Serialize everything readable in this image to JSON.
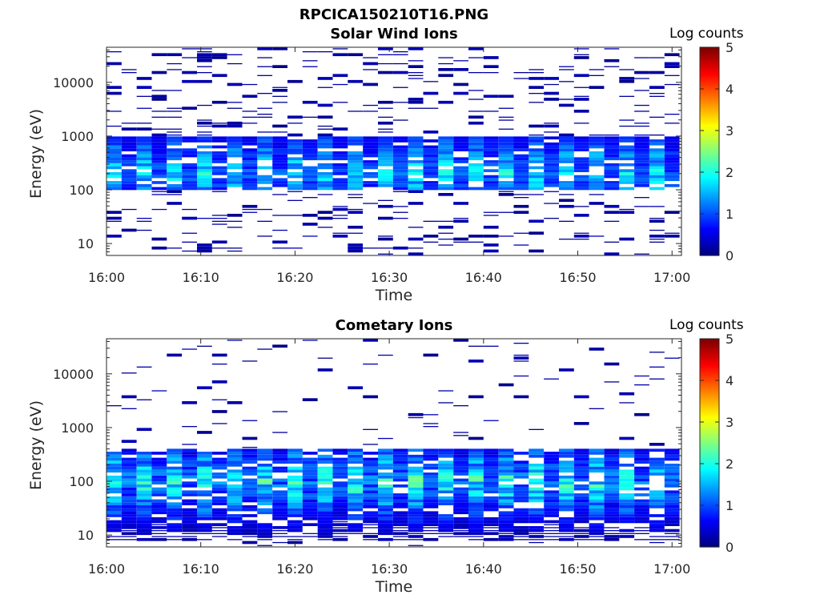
{
  "figure": {
    "title": "RPCICA150210T16.PNG"
  },
  "colorbar": {
    "label": "Log counts",
    "ticks": [
      "0",
      "1",
      "2",
      "3",
      "4",
      "5"
    ],
    "range": [
      0,
      5
    ],
    "colormap": "jet"
  },
  "chart_data": [
    {
      "type": "heatmap",
      "title": "Solar Wind Ions",
      "xlabel": "Time",
      "ylabel": "Energy (eV)",
      "x_ticks": [
        "16:00",
        "16:10",
        "16:20",
        "16:30",
        "16:40",
        "16:50",
        "17:00"
      ],
      "y_ticks": [
        "10",
        "100",
        "1000",
        "10000"
      ],
      "y_scale": "log",
      "ylim": [
        6,
        45000
      ],
      "xlim_minutes": [
        0,
        61
      ],
      "colorbar_label": "Log counts",
      "zlim": [
        0,
        5
      ],
      "time_columns": 38,
      "time_start": "16:00",
      "column_minutes": 1.6,
      "core_energy_band_eV": [
        100,
        1000
      ],
      "core_level_range": [
        0.5,
        2.2
      ],
      "peak_energy_eV": 200
    },
    {
      "type": "heatmap",
      "title": "Cometary Ions",
      "xlabel": "Time",
      "ylabel": "Energy (eV)",
      "x_ticks": [
        "16:00",
        "16:10",
        "16:20",
        "16:30",
        "16:40",
        "16:50",
        "17:00"
      ],
      "y_ticks": [
        "10",
        "100",
        "1000",
        "10000"
      ],
      "y_scale": "log",
      "ylim": [
        6,
        45000
      ],
      "xlim_minutes": [
        0,
        61
      ],
      "colorbar_label": "Log counts",
      "zlim": [
        0,
        5
      ],
      "time_columns": 38,
      "time_start": "16:00",
      "column_minutes": 1.6,
      "core_energy_band_eV": [
        8,
        400
      ],
      "core_level_range": [
        0.3,
        2.6
      ],
      "peak_energy_eV": 100
    }
  ]
}
